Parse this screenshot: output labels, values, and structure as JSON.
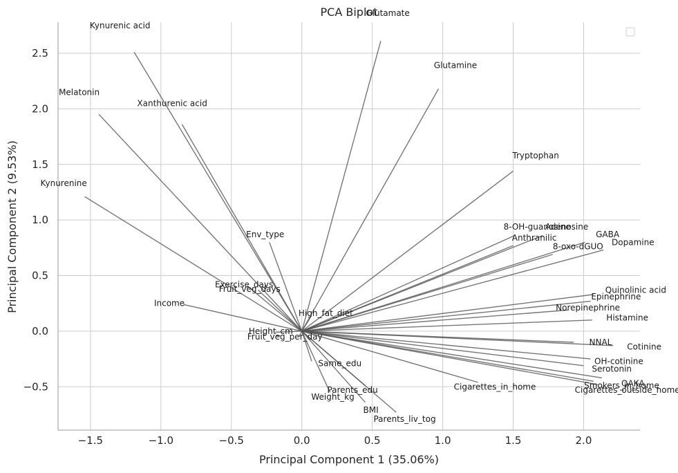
{
  "chart_data": {
    "type": "scatter",
    "subtype": "biplot-loading-vectors",
    "title": "PCA Biplot",
    "xlabel": "Principal Component 1 (35.06%)",
    "ylabel": "Principal Component 2 (9.53%)",
    "xlim": [
      -1.73,
      2.4
    ],
    "ylim": [
      -0.89,
      2.78
    ],
    "xticks": [
      -1.5,
      -1.0,
      -0.5,
      0.0,
      0.5,
      1.0,
      1.5,
      2.0
    ],
    "xtick_labels": [
      "−1.5",
      "−1.0",
      "−0.5",
      "0.0",
      "0.5",
      "1.0",
      "1.5",
      "2.0"
    ],
    "yticks": [
      -0.5,
      0.0,
      0.5,
      1.0,
      1.5,
      2.0,
      2.5
    ],
    "ytick_labels": [
      "−0.5",
      "0.0",
      "0.5",
      "1.0",
      "1.5",
      "2.0",
      "2.5"
    ],
    "grid": true,
    "legend": "top-right (empty)",
    "line_color": "#555555",
    "vectors": [
      {
        "label": "Glutamate",
        "x": 0.56,
        "y": 2.61,
        "lx": 0.61,
        "ly": 2.86
      },
      {
        "label": "Kynurenic acid",
        "x": -1.19,
        "y": 2.51,
        "lx": -1.29,
        "ly": 2.75
      },
      {
        "label": "Glutamine",
        "x": 0.97,
        "y": 2.18,
        "lx": 1.09,
        "ly": 2.39
      },
      {
        "label": "Melatonin",
        "x": -1.44,
        "y": 1.95,
        "lx": -1.58,
        "ly": 2.15
      },
      {
        "label": "Xanthurenic acid",
        "x": -0.85,
        "y": 1.86,
        "lx": -0.92,
        "ly": 2.05
      },
      {
        "label": "Tryptophan",
        "x": 1.5,
        "y": 1.44,
        "lx": 1.66,
        "ly": 1.58
      },
      {
        "label": "Kynurenine",
        "x": -1.54,
        "y": 1.21,
        "lx": -1.69,
        "ly": 1.33
      },
      {
        "label": "Env_type",
        "x": -0.23,
        "y": 0.8,
        "lx": -0.26,
        "ly": 0.87
      },
      {
        "label": "8-OH-guanosine",
        "x": 1.51,
        "y": 0.86,
        "lx": 1.67,
        "ly": 0.94
      },
      {
        "label": "Adenosine",
        "x": 1.71,
        "y": 0.86,
        "lx": 1.88,
        "ly": 0.94
      },
      {
        "label": "Anthranilic",
        "x": 1.5,
        "y": 0.77,
        "lx": 1.65,
        "ly": 0.84
      },
      {
        "label": "GABA",
        "x": 2.01,
        "y": 0.8,
        "lx": 2.17,
        "ly": 0.87
      },
      {
        "label": "Dopamine",
        "x": 2.14,
        "y": 0.73,
        "lx": 2.35,
        "ly": 0.8
      },
      {
        "label": "8-oxo-dGUO",
        "x": 1.78,
        "y": 0.69,
        "lx": 1.96,
        "ly": 0.76
      },
      {
        "label": "Exercise_days",
        "x": -0.39,
        "y": 0.41,
        "lx": -0.41,
        "ly": 0.42
      },
      {
        "label": "Fruit_veg_days",
        "x": -0.31,
        "y": 0.37,
        "lx": -0.37,
        "ly": 0.38
      },
      {
        "label": "Income",
        "x": -0.84,
        "y": 0.24,
        "lx": -0.94,
        "ly": 0.25
      },
      {
        "label": "Quinolinic acid",
        "x": 2.07,
        "y": 0.33,
        "lx": 2.37,
        "ly": 0.37
      },
      {
        "label": "Epinephrine",
        "x": 2.05,
        "y": 0.27,
        "lx": 2.23,
        "ly": 0.31
      },
      {
        "label": "Norepinephrine",
        "x": 1.89,
        "y": 0.19,
        "lx": 2.03,
        "ly": 0.21
      },
      {
        "label": "Histamine",
        "x": 2.06,
        "y": 0.1,
        "lx": 2.31,
        "ly": 0.12
      },
      {
        "label": "High_fat_diet",
        "x": 0.06,
        "y": 0.12,
        "lx": 0.17,
        "ly": 0.16
      },
      {
        "label": "Height_cm",
        "x": -0.19,
        "y": -0.01,
        "lx": -0.22,
        "ly": 0.0
      },
      {
        "label": "Fruit_veg_per_day",
        "x": -0.02,
        "y": -0.05,
        "lx": -0.12,
        "ly": -0.05
      },
      {
        "label": "NNAL",
        "x": 1.93,
        "y": -0.1,
        "lx": 2.12,
        "ly": -0.1
      },
      {
        "label": "Cotinine",
        "x": 2.21,
        "y": -0.13,
        "lx": 2.43,
        "ly": -0.14
      },
      {
        "label": "OH-cotinine",
        "x": 2.05,
        "y": -0.25,
        "lx": 2.25,
        "ly": -0.27
      },
      {
        "label": "Serotonin",
        "x": 2.0,
        "y": -0.31,
        "lx": 2.2,
        "ly": -0.34
      },
      {
        "label": "Same_edu",
        "x": 0.07,
        "y": -0.27,
        "lx": 0.27,
        "ly": -0.29
      },
      {
        "label": "Cigarettes_in_home",
        "x": 1.25,
        "y": -0.46,
        "lx": 1.37,
        "ly": -0.5
      },
      {
        "label": "QAKA",
        "x": 2.13,
        "y": -0.42,
        "lx": 2.35,
        "ly": -0.47
      },
      {
        "label": "Smokers_in_home",
        "x": 2.07,
        "y": -0.45,
        "lx": 2.27,
        "ly": -0.49
      },
      {
        "label": "Cigarettes_outside_home",
        "x": 2.1,
        "y": -0.48,
        "lx": 2.31,
        "ly": -0.53
      },
      {
        "label": "Parents_edu",
        "x": 0.45,
        "y": -0.49,
        "lx": 0.36,
        "ly": -0.53
      },
      {
        "label": "Weight_kg",
        "x": 0.2,
        "y": -0.55,
        "lx": 0.22,
        "ly": -0.59
      },
      {
        "label": "BMI",
        "x": 0.45,
        "y": -0.64,
        "lx": 0.49,
        "ly": -0.71
      },
      {
        "label": "Parents_liv_tog",
        "x": 0.67,
        "y": -0.73,
        "lx": 0.73,
        "ly": -0.79
      }
    ]
  }
}
